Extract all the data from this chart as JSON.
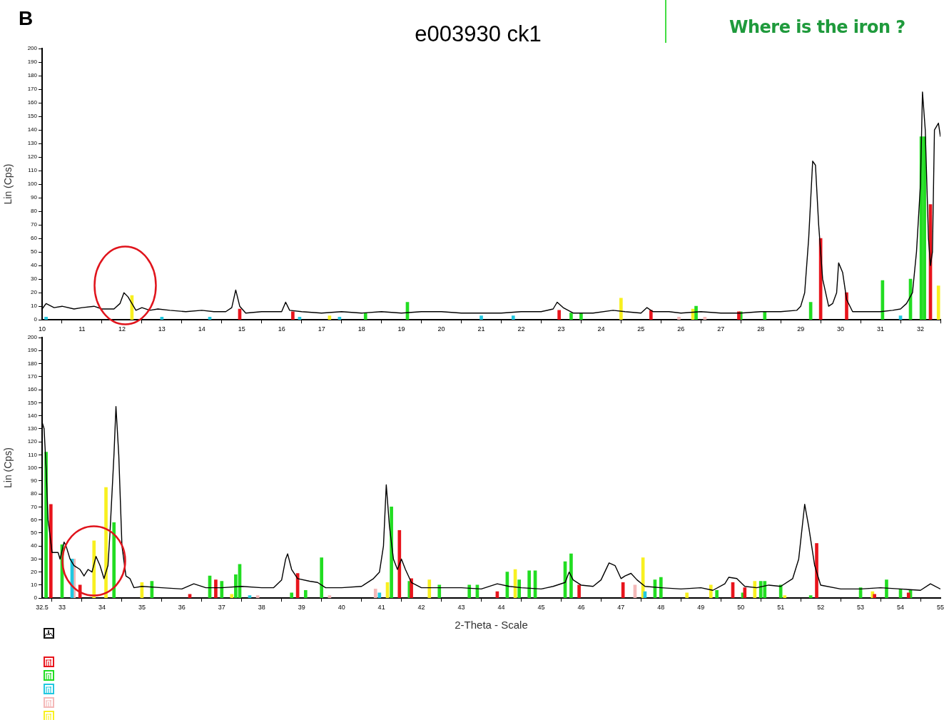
{
  "chart_data": [
    {
      "type": "line",
      "title": "e003930 ck1",
      "annotations": [
        "B",
        "Where is the iron ?"
      ],
      "ylabel": "Lin (Cps)",
      "marker": "none",
      "xlim": [
        10,
        32.5
      ],
      "ylim": [
        0,
        200
      ],
      "xticks": [
        10,
        11,
        12,
        13,
        14,
        15,
        16,
        17,
        18,
        19,
        20,
        21,
        22,
        23,
        24,
        25,
        26,
        27,
        28,
        29,
        30,
        31,
        32
      ],
      "yticks": [
        0,
        10,
        20,
        30,
        40,
        50,
        60,
        70,
        80,
        90,
        100,
        110,
        120,
        130,
        140,
        150,
        160,
        170,
        180,
        190,
        200
      ],
      "series": [
        {
          "type": "bar",
          "color": "#e8141c",
          "x": [
            14.95,
            16.28,
            22.95,
            25.25,
            27.45,
            29.5,
            30.15,
            32.25
          ],
          "values": [
            8,
            6,
            7,
            7,
            6,
            60,
            20,
            85
          ]
        },
        {
          "type": "bar",
          "color": "#22dd22",
          "x": [
            18.1,
            19.15,
            23.25,
            23.5,
            26.38,
            27.5,
            28.1,
            29.25,
            31.05,
            31.75,
            32.02,
            32.1
          ],
          "values": [
            5,
            13,
            5,
            5,
            10,
            6,
            6,
            13,
            29,
            30,
            135,
            135
          ]
        },
        {
          "type": "bar",
          "color": "#22c8e0",
          "x": [
            10.1,
            13,
            14.2,
            16.45,
            17.45,
            21,
            21.8,
            31.5
          ],
          "values": [
            2,
            2,
            2,
            2,
            2,
            3,
            3,
            3
          ]
        },
        {
          "type": "bar",
          "color": "#f4b8b8",
          "x": [
            25.95,
            26.6
          ],
          "values": [
            2,
            2
          ]
        },
        {
          "type": "bar",
          "color": "#f8f020",
          "x": [
            12.25,
            17.2,
            24.5,
            26.3,
            32.45
          ],
          "values": [
            18,
            3,
            16,
            8,
            25
          ]
        },
        {
          "color": "#000000",
          "x": [
            10,
            10.1,
            10.3,
            10.5,
            10.8,
            11,
            11.3,
            11.5,
            11.8,
            11.95,
            12.05,
            12.15,
            12.25,
            12.35,
            12.5,
            12.7,
            12.9,
            13.2,
            13.6,
            14,
            14.3,
            14.6,
            14.75,
            14.85,
            14.95,
            15.1,
            15.5,
            16,
            16.1,
            16.2,
            16.5,
            17,
            17.5,
            18,
            18.5,
            19,
            19.5,
            20,
            20.5,
            21,
            21.5,
            22,
            22.5,
            22.8,
            22.9,
            23.05,
            23.3,
            23.8,
            24.3,
            24.6,
            25,
            25.15,
            25.3,
            25.7,
            26,
            26.5,
            27,
            27.5,
            28,
            28.5,
            28.9,
            29,
            29.1,
            29.2,
            29.3,
            29.37,
            29.45,
            29.55,
            29.7,
            29.8,
            29.9,
            29.95,
            30.05,
            30.15,
            30.3,
            30.6,
            31,
            31.3,
            31.5,
            31.65,
            31.8,
            31.9,
            32,
            32.05,
            32.12,
            32.2,
            32.25,
            32.3,
            32.35,
            32.45,
            32.5
          ],
          "values": [
            8,
            12,
            9,
            10,
            8,
            9,
            10,
            8,
            8,
            12,
            20,
            17,
            12,
            7,
            9,
            7,
            8,
            7,
            6,
            7,
            6,
            6,
            9,
            22,
            10,
            5,
            6,
            6,
            13,
            7,
            6,
            5,
            6,
            5,
            6,
            5,
            6,
            6,
            5,
            5,
            5,
            6,
            6,
            8,
            13,
            9,
            5,
            5,
            7,
            6,
            5,
            9,
            6,
            6,
            5,
            6,
            5,
            5,
            6,
            6,
            7,
            10,
            20,
            60,
            117,
            114,
            70,
            30,
            10,
            12,
            20,
            42,
            35,
            15,
            6,
            6,
            6,
            7,
            8,
            12,
            20,
            50,
            100,
            168,
            140,
            60,
            40,
            50,
            140,
            145,
            135
          ]
        }
      ]
    },
    {
      "type": "line",
      "ylabel": "Lin (Cps)",
      "xlabel": "2-Theta - Scale",
      "marker": "none",
      "xlim": [
        32.5,
        55
      ],
      "ylim": [
        0,
        200
      ],
      "xticks": [
        32.5,
        33,
        34,
        35,
        36,
        37,
        38,
        39,
        40,
        41,
        42,
        43,
        44,
        45,
        46,
        47,
        48,
        49,
        50,
        51,
        52,
        53,
        54,
        55
      ],
      "yticks": [
        0,
        10,
        20,
        30,
        40,
        50,
        60,
        70,
        80,
        90,
        100,
        110,
        120,
        130,
        140,
        150,
        160,
        170,
        180,
        190,
        200
      ],
      "series": [
        {
          "type": "bar",
          "color": "#e8141c",
          "x": [
            32.72,
            33.45,
            36.2,
            36.85,
            38.9,
            41.45,
            41.75,
            43.9,
            45.95,
            47.05,
            49.8,
            50.1,
            51.9,
            53.35,
            54.2
          ],
          "values": [
            72,
            10,
            3,
            14,
            19,
            52,
            15,
            5,
            10,
            12,
            12,
            8,
            42,
            3,
            4
          ]
        },
        {
          "type": "bar",
          "color": "#22dd22",
          "x": [
            32.6,
            33,
            34.3,
            35.25,
            36.7,
            37,
            37.35,
            37.45,
            38.75,
            39.1,
            39.5,
            41.25,
            41.7,
            42.45,
            43.2,
            43.4,
            44.15,
            44.45,
            44.7,
            44.85,
            45.6,
            45.75,
            47.85,
            48,
            49.4,
            50.05,
            50.5,
            50.6,
            51,
            51.75,
            53,
            53.65,
            54,
            54.25
          ],
          "values": [
            112,
            41,
            58,
            13,
            17,
            13,
            18,
            26,
            4,
            6,
            31,
            70,
            13,
            10,
            10,
            10,
            20,
            14,
            21,
            21,
            28,
            34,
            14,
            16,
            6,
            4,
            13,
            13,
            10,
            2,
            8,
            14,
            7,
            6
          ]
        },
        {
          "type": "bar",
          "color": "#22c8e0",
          "x": [
            33.25,
            37.7,
            40.95,
            47.6
          ],
          "values": [
            30,
            2,
            4,
            5
          ]
        },
        {
          "type": "bar",
          "color": "#f4b8b8",
          "x": [
            33.3,
            37.9,
            39.7,
            40.85,
            47.35
          ],
          "values": [
            30,
            2,
            2,
            7,
            10
          ]
        },
        {
          "type": "bar",
          "color": "#f8f020",
          "x": [
            33.8,
            34.1,
            35,
            37.25,
            41.15,
            42.2,
            44.35,
            47.55,
            48.65,
            49.25,
            50.35,
            51.1,
            53.3
          ],
          "values": [
            44,
            85,
            12,
            3,
            12,
            14,
            22,
            31,
            4,
            10,
            13,
            2,
            5
          ]
        },
        {
          "color": "#000000",
          "x": [
            32.5,
            32.55,
            32.6,
            32.65,
            32.75,
            32.9,
            32.95,
            33.05,
            33.1,
            33.2,
            33.3,
            33.45,
            33.55,
            33.65,
            33.75,
            33.85,
            33.95,
            34.05,
            34.15,
            34.2,
            34.3,
            34.35,
            34.42,
            34.5,
            34.6,
            34.7,
            34.8,
            35,
            35.5,
            36,
            36.3,
            36.6,
            37,
            37.5,
            38,
            38.3,
            38.5,
            38.6,
            38.65,
            38.75,
            38.9,
            39.2,
            39.4,
            39.6,
            40,
            40.5,
            40.8,
            40.95,
            41.05,
            41.12,
            41.2,
            41.3,
            41.4,
            41.5,
            41.6,
            41.75,
            42,
            42.5,
            43,
            43.5,
            43.9,
            44.2,
            44.5,
            45,
            45.3,
            45.6,
            45.7,
            45.8,
            46,
            46.3,
            46.5,
            46.7,
            46.85,
            47,
            47.1,
            47.25,
            47.4,
            47.6,
            48,
            48.5,
            49,
            49.3,
            49.6,
            49.7,
            49.9,
            50.1,
            50.4,
            50.7,
            51,
            51.3,
            51.45,
            51.6,
            51.7,
            51.85,
            52,
            52.5,
            53,
            53.5,
            54,
            54.5,
            54.75,
            55
          ],
          "values": [
            135,
            130,
            100,
            60,
            35,
            35,
            30,
            43,
            40,
            30,
            25,
            22,
            17,
            22,
            20,
            32,
            25,
            15,
            25,
            50,
            110,
            147,
            110,
            40,
            17,
            15,
            8,
            9,
            8,
            7,
            11,
            8,
            8,
            9,
            8,
            8,
            14,
            30,
            34,
            22,
            15,
            13,
            12,
            8,
            8,
            9,
            15,
            20,
            40,
            87,
            55,
            30,
            22,
            30,
            22,
            12,
            8,
            8,
            8,
            7,
            11,
            9,
            8,
            7,
            9,
            12,
            20,
            14,
            10,
            9,
            14,
            27,
            25,
            15,
            17,
            19,
            14,
            9,
            8,
            7,
            8,
            6,
            11,
            16,
            15,
            9,
            8,
            10,
            9,
            15,
            30,
            72,
            55,
            25,
            10,
            7,
            7,
            8,
            7,
            6,
            11,
            7
          ]
        }
      ]
    }
  ]
}
